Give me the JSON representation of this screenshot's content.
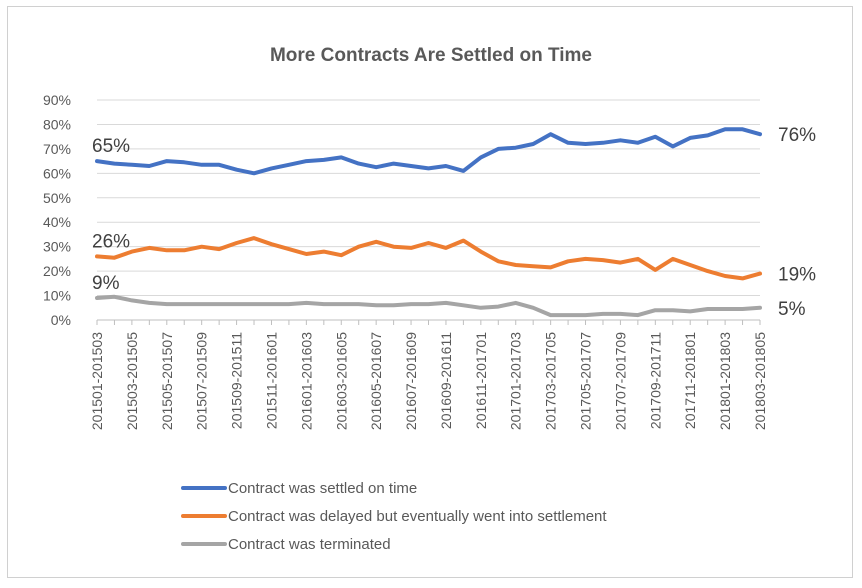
{
  "chart_data": {
    "type": "line",
    "title": "More Contracts Are Settled on Time",
    "xlabel": "",
    "ylabel": "",
    "ylim": [
      0,
      90
    ],
    "yticks": [
      "0%",
      "10%",
      "20%",
      "30%",
      "40%",
      "50%",
      "60%",
      "70%",
      "80%",
      "90%"
    ],
    "grid": true,
    "legend_position": "bottom",
    "x": [
      "201501-201503",
      "201502-201504",
      "201503-201505",
      "201504-201506",
      "201505-201507",
      "201506-201508",
      "201507-201509",
      "201508-201510",
      "201509-201511",
      "201510-201512",
      "201511-201601",
      "201512-201602",
      "201601-201603",
      "201602-201604",
      "201603-201605",
      "201604-201606",
      "201605-201607",
      "201606-201608",
      "201607-201609",
      "201608-201610",
      "201609-201611",
      "201610-201612",
      "201611-201701",
      "201612-201702",
      "201701-201703",
      "201702-201704",
      "201703-201705",
      "201704-201706",
      "201705-201707",
      "201706-201708",
      "201707-201709",
      "201708-201710",
      "201709-201711",
      "201710-201712",
      "201711-201801",
      "201712-201802",
      "201801-201803",
      "201802-201804",
      "201803-201805"
    ],
    "xtick_labels": [
      "201501-201503",
      "201503-201505",
      "201505-201507",
      "201507-201509",
      "201509-201511",
      "201511-201601",
      "201601-201603",
      "201603-201605",
      "201605-201607",
      "201607-201609",
      "201609-201611",
      "201611-201701",
      "201701-201703",
      "201703-201705",
      "201705-201707",
      "201707-201709",
      "201709-201711",
      "201711-201801",
      "201801-201803",
      "201803-201805"
    ],
    "series": [
      {
        "name": "Contract was settled on time",
        "color": "#4472C4",
        "values": [
          65,
          64,
          63.5,
          63,
          65,
          64.5,
          63.5,
          63.5,
          61.5,
          60,
          62,
          63.5,
          65,
          65.5,
          66.5,
          64,
          62.5,
          64,
          63,
          62,
          63,
          61,
          66.5,
          70,
          70.5,
          72,
          76,
          72.5,
          72,
          72.5,
          73.5,
          72.5,
          75,
          71,
          74.5,
          75.5,
          78,
          78,
          76
        ],
        "start_label": "65%",
        "end_label": "76%"
      },
      {
        "name": "Contract was delayed but eventually went into settlement",
        "color": "#ED7D31",
        "values": [
          26,
          25.5,
          28,
          29.5,
          28.5,
          28.5,
          30,
          29,
          31.5,
          33.5,
          31,
          29,
          27,
          28,
          26.5,
          30,
          32,
          30,
          29.5,
          31.5,
          29.5,
          32.5,
          28,
          24,
          22.5,
          22,
          21.5,
          24,
          25,
          24.5,
          23.5,
          25,
          20.5,
          25,
          22.5,
          20,
          18,
          17,
          19
        ],
        "start_label": "26%",
        "end_label": "19%"
      },
      {
        "name": "Contract was terminated",
        "color": "#A5A5A5",
        "values": [
          9,
          9.5,
          8,
          7,
          6.5,
          6.5,
          6.5,
          6.5,
          6.5,
          6.5,
          6.5,
          6.5,
          7,
          6.5,
          6.5,
          6.5,
          6,
          6,
          6.5,
          6.5,
          7,
          6,
          5,
          5.5,
          7,
          5,
          2,
          2,
          2,
          2.5,
          2.5,
          2,
          4,
          4,
          3.5,
          4.5,
          4.5,
          4.5,
          5
        ],
        "start_label": "9%",
        "end_label": "5%"
      }
    ]
  }
}
